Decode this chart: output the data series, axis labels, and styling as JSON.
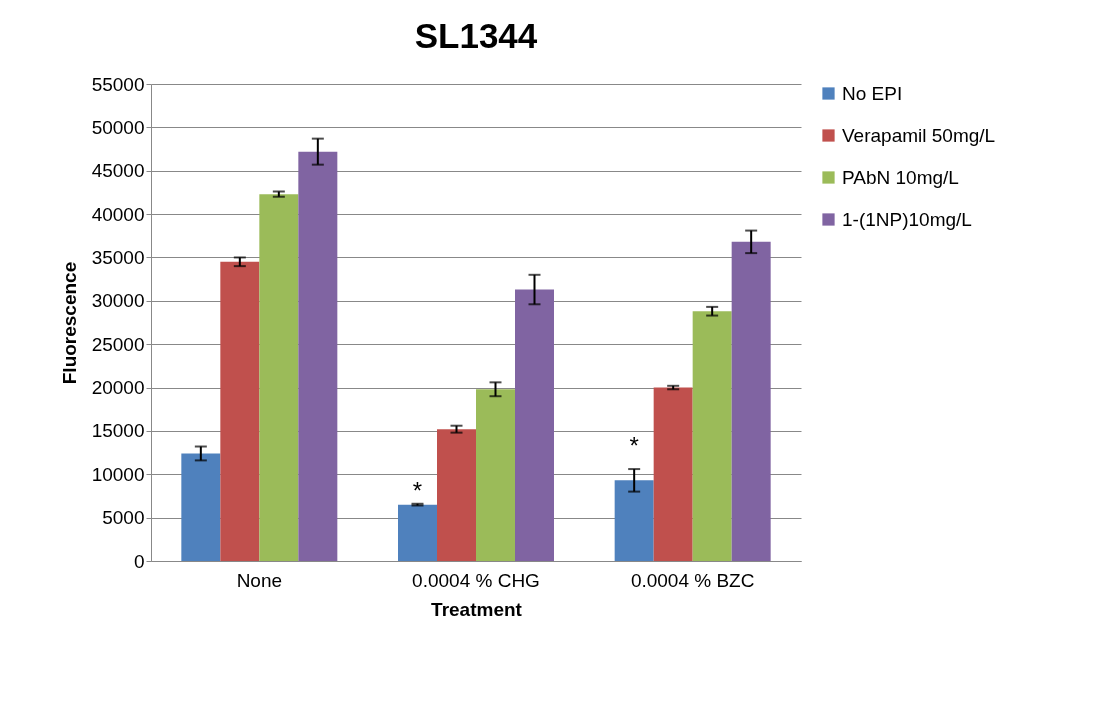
{
  "chart_data": {
    "type": "bar",
    "title": "SL1344",
    "xlabel": "Treatment",
    "ylabel": "Fluorescence",
    "categories": [
      "None",
      "0.0004 % CHG",
      "0.0004 % BZC"
    ],
    "series": [
      {
        "name": "No EPI",
        "color": "#4f81bd",
        "values": [
          12400,
          6500,
          9300
        ],
        "errors": [
          800,
          100,
          1300
        ]
      },
      {
        "name": "Verapamil 50mg/L",
        "color": "#c0504d",
        "values": [
          34500,
          15200,
          20000
        ],
        "errors": [
          500,
          400,
          200
        ]
      },
      {
        "name": "PAbN 10mg/L",
        "color": "#9bbb59",
        "values": [
          42300,
          19800,
          28800
        ],
        "errors": [
          300,
          800,
          500
        ]
      },
      {
        "name": "1-(1NP)10mg/L",
        "color": "#8064a2",
        "values": [
          47200,
          31300,
          36800
        ],
        "errors": [
          1500,
          1700,
          1300
        ]
      }
    ],
    "ylim": [
      0,
      55000
    ],
    "yticks": [
      0,
      5000,
      10000,
      15000,
      20000,
      25000,
      30000,
      35000,
      40000,
      45000,
      50000,
      55000
    ],
    "grid": "y",
    "legend": "right",
    "annotations": [
      {
        "text": "*",
        "x": "0.0004 % CHG",
        "y": 8000
      },
      {
        "text": "*",
        "x": "0.0004 % BZC",
        "y": 13200
      }
    ]
  }
}
